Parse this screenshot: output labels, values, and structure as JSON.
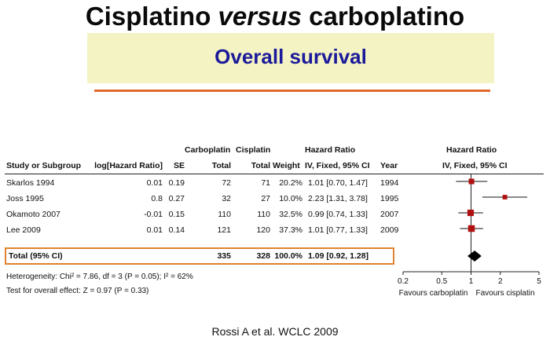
{
  "slide": {
    "title_pre": "Cisplatino ",
    "title_italic": "versus",
    "title_post": " carboplatino",
    "subtitle": "Overall survival",
    "source": "Rossi A et al. WCLC 2009"
  },
  "colors": {
    "banner": "#f4f3c4",
    "subtitle": "#1a1a9a",
    "accent": "#e0692a",
    "marker": "#b01010"
  },
  "table": {
    "headers": {
      "study": "Study or Subgroup",
      "loghr": "log[Hazard Ratio]",
      "se": "SE",
      "carbo_top": "Carboplatin",
      "carbo_bottom": "Total",
      "cis_top": "Cisplatin",
      "cis_bottom": "Total",
      "weight": "Weight",
      "hr_top": "Hazard Ratio",
      "hr_bottom": "IV, Fixed, 95% CI",
      "year": "Year",
      "plot_top": "Hazard Ratio",
      "plot_bottom": "IV, Fixed, 95% CI"
    },
    "rows": [
      {
        "study": "Skarlos 1994",
        "loghr": "0.01",
        "se": "0.19",
        "carbo": "72",
        "cis": "71",
        "weight": "20.2%",
        "ci": "1.01 [0.70, 1.47]",
        "year": "1994"
      },
      {
        "study": "Joss 1995",
        "loghr": "0.8",
        "se": "0.27",
        "carbo": "32",
        "cis": "27",
        "weight": "10.0%",
        "ci": "2.23 [1.31, 3.78]",
        "year": "1995"
      },
      {
        "study": "Okamoto 2007",
        "loghr": "-0.01",
        "se": "0.15",
        "carbo": "110",
        "cis": "110",
        "weight": "32.5%",
        "ci": "0.99 [0.74, 1.33]",
        "year": "2007"
      },
      {
        "study": "Lee 2009",
        "loghr": "0.01",
        "se": "0.14",
        "carbo": "121",
        "cis": "120",
        "weight": "37.3%",
        "ci": "1.01 [0.77, 1.33]",
        "year": "2009"
      }
    ],
    "total": {
      "study": "Total (95% CI)",
      "carbo": "335",
      "cis": "328",
      "weight": "100.0%",
      "ci": "1.09 [0.92, 1.28]"
    },
    "heterogeneity": "Heterogeneity: Chi² = 7.86, df = 3 (P = 0.05); I² = 62%",
    "overall_effect": "Test for overall effect: Z = 0.97 (P = 0.33)",
    "favours_left": "Favours carboplatin",
    "favours_right": "Favours cisplatin"
  },
  "chart_data": {
    "type": "forest",
    "scale": "log",
    "xlim": [
      0.2,
      5
    ],
    "ticks": [
      0.2,
      0.5,
      1,
      2,
      5
    ],
    "tick_labels": [
      "0.2",
      "0.5",
      "1",
      "2",
      "5"
    ],
    "studies": [
      {
        "name": "Skarlos 1994",
        "hr": 1.01,
        "lo": 0.7,
        "hi": 1.47,
        "weight": 20.2
      },
      {
        "name": "Joss 1995",
        "hr": 2.23,
        "lo": 1.31,
        "hi": 3.78,
        "weight": 10.0
      },
      {
        "name": "Okamoto 2007",
        "hr": 0.99,
        "lo": 0.74,
        "hi": 1.33,
        "weight": 32.5
      },
      {
        "name": "Lee 2009",
        "hr": 1.01,
        "lo": 0.77,
        "hi": 1.33,
        "weight": 37.3
      }
    ],
    "pooled": {
      "name": "Total (95% CI)",
      "hr": 1.09,
      "lo": 0.92,
      "hi": 1.28
    }
  }
}
